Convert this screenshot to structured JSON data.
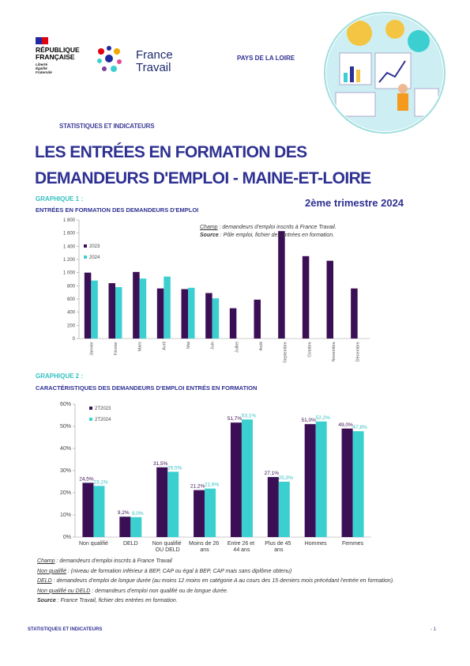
{
  "header": {
    "republic": [
      "RÉPUBLIQUE",
      "FRANÇAISE"
    ],
    "motto": [
      "Liberté",
      "Égalité",
      "Fraternité"
    ],
    "brand": [
      "France",
      "Travail"
    ],
    "region": "PAYS DE LA LOIRE",
    "section": "STATISTIQUES ET INDICATEURS",
    "title_lines": [
      "LES ENTRÉES EN FORMATION DES",
      "DEMANDEURS D'EMPLOI - MAINE-ET-LOIRE"
    ],
    "period": "2ème trimestre 2024"
  },
  "chart_data": [
    {
      "type": "bar",
      "label": "GRAPHIQUE 1 :",
      "title": "ENTRÉES EN FORMATION DES DEMANDEURS D'EMPLOI",
      "categories": [
        "Janvier",
        "Février",
        "Mars",
        "Avril",
        "Mai",
        "Juin",
        "Juillet",
        "Août",
        "Septembre",
        "Octobre",
        "Novembre",
        "Décembre"
      ],
      "series": [
        {
          "name": "2023",
          "color": "#3b0f56",
          "values": [
            1000,
            840,
            1010,
            760,
            750,
            690,
            460,
            590,
            1630,
            1250,
            1180,
            760
          ]
        },
        {
          "name": "2024",
          "color": "#3ccfd0",
          "values": [
            880,
            780,
            910,
            940,
            770,
            610,
            null,
            null,
            null,
            null,
            null,
            null
          ]
        }
      ],
      "ylim": [
        0,
        1800
      ],
      "yticks": [
        0,
        200,
        400,
        600,
        800,
        {
          "value": 1000,
          "label": "1 000"
        },
        {
          "value": 1200,
          "label": "1 200"
        },
        {
          "value": 1400,
          "label": "1 400"
        },
        {
          "value": 1600,
          "label": "1 600"
        },
        {
          "value": 1800,
          "label": "1 800"
        }
      ],
      "notes": [
        {
          "label": "Champ",
          "text": " : demandeurs d'emploi inscrits à France Travail."
        },
        {
          "label": "Source",
          "text": " : Pôle emploi, fichier des entrées en formation."
        }
      ]
    },
    {
      "type": "bar",
      "label": "GRAPHIQUE 2 :",
      "title": "CARACTÉRISTIQUES DES DEMANDEURS D'EMPLOI ENTRÉS EN FORMATION",
      "categories": [
        "Non qualifié",
        "DELD",
        "Non qualifié OU DELD",
        "Moins de 26 ans",
        "Entre 26 et 44 ans",
        "Plus de 45 ans",
        "Hommes",
        "Femmes"
      ],
      "series": [
        {
          "name": "2T2023",
          "color": "#3b0f56",
          "values": [
            24.5,
            9.2,
            31.5,
            21.2,
            51.7,
            27.1,
            51.0,
            49.0
          ],
          "value_labels": [
            "24,5%",
            "9,2%",
            "31,5%",
            "21,2%",
            "51,7%",
            "27,1%",
            "51,0%",
            "49,0%"
          ]
        },
        {
          "name": "2T2024",
          "color": "#3ccfd0",
          "values": [
            23.1,
            9.0,
            29.5,
            21.9,
            53.1,
            25.0,
            52.2,
            47.8
          ],
          "value_labels": [
            "23,1%",
            "9,0%",
            "29,5%",
            "21,9%",
            "53,1%",
            "25,0%",
            "52,2%",
            "47,8%"
          ]
        }
      ],
      "ylim": [
        0,
        60
      ],
      "yticks": [
        {
          "value": 0,
          "label": "0%"
        },
        {
          "value": 10,
          "label": "10%"
        },
        {
          "value": 20,
          "label": "20%"
        },
        {
          "value": 30,
          "label": "30%"
        },
        {
          "value": 40,
          "label": "40%"
        },
        {
          "value": 50,
          "label": "50%"
        },
        {
          "value": 60,
          "label": "60%"
        }
      ]
    }
  ],
  "notes": [
    {
      "label": "Champ",
      "text": " : demandeurs d'emploi inscrits à France Travail"
    },
    {
      "label": "Non qualifié",
      "text": " : (niveau de formation inférieur à BEP, CAP ou égal à BEP, CAP mais sans diplôme obtenu)"
    },
    {
      "label": "DELD",
      "text": " : demandeurs d'emploi de longue durée (au moins 12 moins en catégorie A au cours des 15 derniers mois précédant l'entrée en formation)."
    },
    {
      "label": "Non qualifié ou DELD",
      "text": " : demandeurs d'emploi non qualifié ou de longue durée."
    },
    {
      "label": "Source",
      "text": " : France Travail, fichier des entrées en formation."
    }
  ],
  "footer": {
    "section": "STATISTIQUES ET INDICATEURS",
    "page": "- 1"
  }
}
